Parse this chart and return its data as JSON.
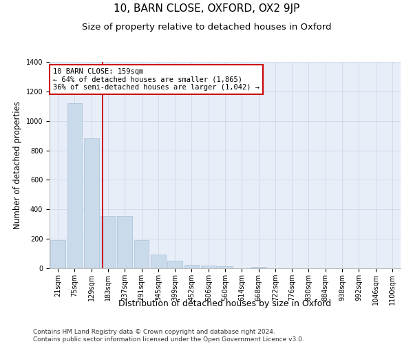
{
  "title": "10, BARN CLOSE, OXFORD, OX2 9JP",
  "subtitle": "Size of property relative to detached houses in Oxford",
  "xlabel": "Distribution of detached houses by size in Oxford",
  "ylabel": "Number of detached properties",
  "footer_line1": "Contains HM Land Registry data © Crown copyright and database right 2024.",
  "footer_line2": "Contains public sector information licensed under the Open Government Licence v3.0.",
  "bar_labels": [
    "21sqm",
    "75sqm",
    "129sqm",
    "183sqm",
    "237sqm",
    "291sqm",
    "345sqm",
    "399sqm",
    "452sqm",
    "506sqm",
    "560sqm",
    "614sqm",
    "668sqm",
    "722sqm",
    "776sqm",
    "830sqm",
    "884sqm",
    "938sqm",
    "992sqm",
    "1046sqm",
    "1100sqm"
  ],
  "bar_values": [
    190,
    1120,
    880,
    355,
    355,
    190,
    95,
    50,
    25,
    20,
    15,
    0,
    10,
    0,
    0,
    0,
    0,
    0,
    0,
    0,
    0
  ],
  "bar_color": "#c9daea",
  "bar_edge_color": "#a8c0d8",
  "grid_color": "#cdd8e8",
  "background_color": "#e8eef8",
  "vline_x": 2.67,
  "vline_color": "#cc0000",
  "annotation_text": "10 BARN CLOSE: 159sqm\n← 64% of detached houses are smaller (1,865)\n36% of semi-detached houses are larger (1,042) →",
  "annotation_box_color": "#cc0000",
  "ylim": [
    0,
    1400
  ],
  "title_fontsize": 11,
  "subtitle_fontsize": 9.5,
  "xlabel_fontsize": 9,
  "ylabel_fontsize": 8.5,
  "tick_fontsize": 7,
  "footer_fontsize": 6.5,
  "ann_fontsize": 7.5
}
